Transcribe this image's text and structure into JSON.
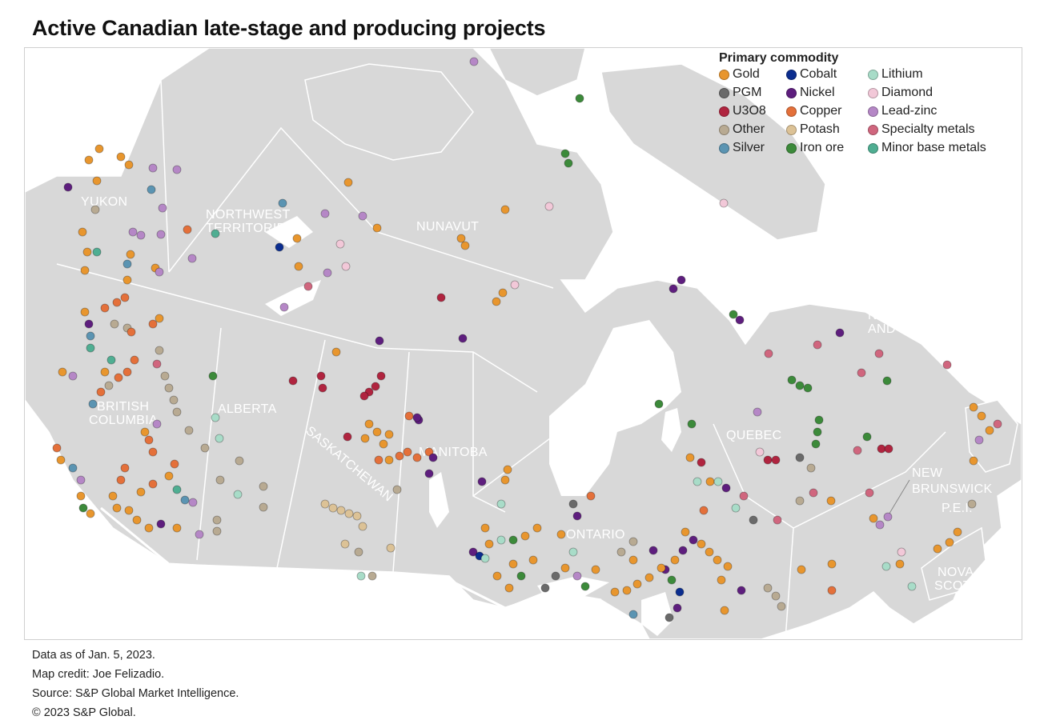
{
  "title": "Active Canadian late-stage and producing projects",
  "legend": {
    "title": "Primary commodity",
    "items": [
      {
        "key": "gold",
        "label": "Gold",
        "color": "#E8962E"
      },
      {
        "key": "cobalt",
        "label": "Cobalt",
        "color": "#0B2D8F"
      },
      {
        "key": "lithium",
        "label": "Lithium",
        "color": "#A8DCC8"
      },
      {
        "key": "pgm",
        "label": "PGM",
        "color": "#6A6A6A"
      },
      {
        "key": "nickel",
        "label": "Nickel",
        "color": "#5E1E7E"
      },
      {
        "key": "diamond",
        "label": "Diamond",
        "color": "#F2C8D8"
      },
      {
        "key": "u3o8",
        "label": "U3O8",
        "color": "#B0243F"
      },
      {
        "key": "copper",
        "label": "Copper",
        "color": "#E4703A"
      },
      {
        "key": "lead_zinc",
        "label": "Lead-zinc",
        "color": "#B587C6"
      },
      {
        "key": "other",
        "label": "Other",
        "color": "#B8AA92"
      },
      {
        "key": "potash",
        "label": "Potash",
        "color": "#DCC296"
      },
      {
        "key": "specialty",
        "label": "Specialty metals",
        "color": "#D0667E"
      },
      {
        "key": "silver",
        "label": "Silver",
        "color": "#5B94B2"
      },
      {
        "key": "iron_ore",
        "label": "Iron ore",
        "color": "#3C8A3A"
      },
      {
        "key": "minor_base",
        "label": "Minor base metals",
        "color": "#4FAE92"
      }
    ]
  },
  "regions": [
    {
      "key": "yukon",
      "lines": [
        "YUKON"
      ]
    },
    {
      "key": "nwt",
      "lines": [
        "NORTHWEST",
        "TERRITORIES"
      ]
    },
    {
      "key": "nunavut",
      "lines": [
        "NUNAVUT"
      ]
    },
    {
      "key": "bc",
      "lines": [
        "BRITISH",
        "COLUMBIA"
      ]
    },
    {
      "key": "alberta",
      "lines": [
        "ALBERTA"
      ]
    },
    {
      "key": "saskatchewan",
      "lines": [
        "SASKATCHEWAN"
      ]
    },
    {
      "key": "manitoba",
      "lines": [
        "MANITOBA"
      ]
    },
    {
      "key": "ontario",
      "lines": [
        "ONTARIO"
      ]
    },
    {
      "key": "quebec",
      "lines": [
        "QUEBEC"
      ]
    },
    {
      "key": "nl",
      "lines": [
        "NEWFOUNDLAND",
        "AND LABRADOR"
      ]
    },
    {
      "key": "nb",
      "lines": [
        "NEW",
        "BRUNSWICK"
      ]
    },
    {
      "key": "pei",
      "lines": [
        "P.E.I."
      ]
    },
    {
      "key": "ns",
      "lines": [
        "NOVA",
        "SCOTIA"
      ]
    }
  ],
  "footer": {
    "line1": "Data as of Jan. 5, 2023.",
    "line2": "Map credit: Joe Felizadio.",
    "line3": "Source: S&P Global Market Intelligence.",
    "line4": "© 2023 S&P Global."
  }
}
